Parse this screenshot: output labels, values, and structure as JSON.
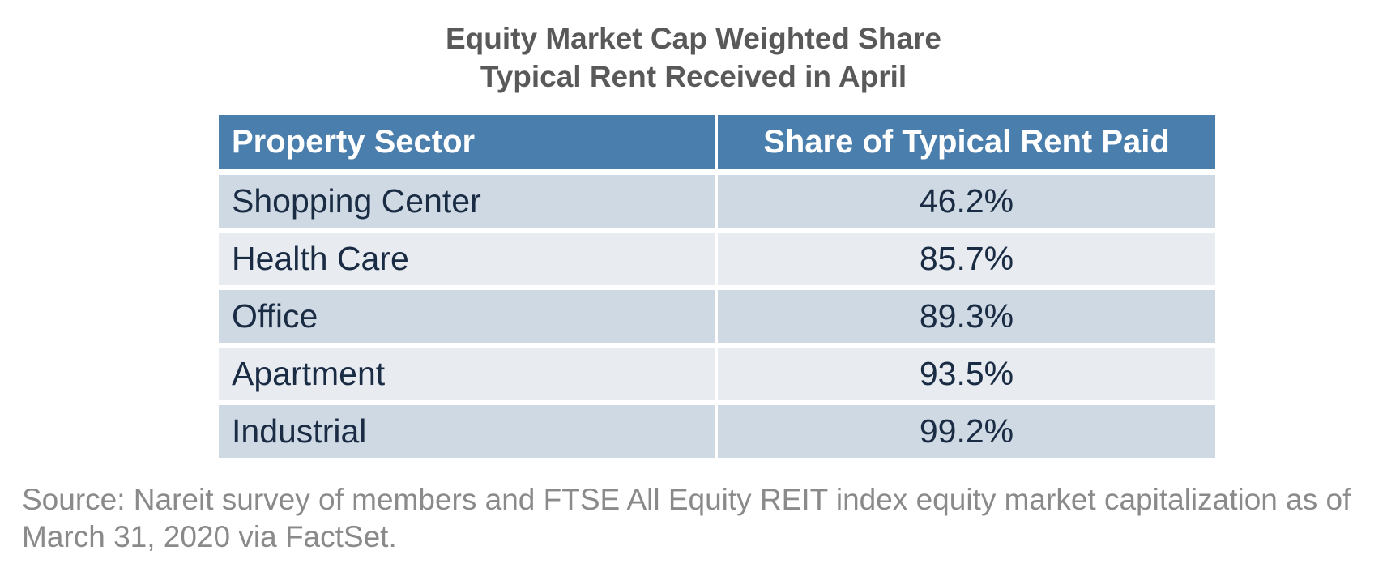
{
  "chart_data": {
    "type": "table",
    "title": "Equity Market Cap Weighted Share",
    "subtitle": "Typical Rent Received in April",
    "columns": [
      "Property Sector",
      "Share of Typical Rent Paid"
    ],
    "rows": [
      {
        "sector": "Shopping Center",
        "share": "46.2%"
      },
      {
        "sector": "Health Care",
        "share": "85.7%"
      },
      {
        "sector": "Office",
        "share": "89.3%"
      },
      {
        "sector": "Apartment",
        "share": "93.5%"
      },
      {
        "sector": "Industrial",
        "share": "99.2%"
      }
    ],
    "values": [
      46.2,
      85.7,
      89.3,
      93.5,
      99.2
    ],
    "source": "Source: Nareit survey of members and FTSE All Equity REIT index equity market capitalization as of March 31, 2020 via FactSet."
  },
  "colors": {
    "header_bg": "#4a7ead",
    "header_text": "#ffffff",
    "row_dark": "#cfd9e3",
    "row_light": "#e8ecf1",
    "body_text": "#1a2b44",
    "title_text": "#595959",
    "source_text": "#8a8a8a"
  }
}
